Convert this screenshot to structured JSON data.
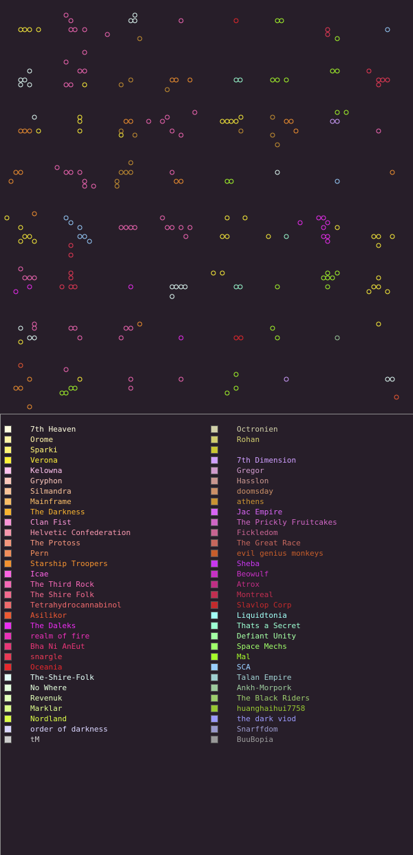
{
  "legend_left": [
    {
      "name": "7th Heaven",
      "color": "#fffde0"
    },
    {
      "name": "Orome",
      "color": "#fff5a8"
    },
    {
      "name": "Sparki",
      "color": "#fff576"
    },
    {
      "name": "Verona",
      "color": "#fff23a"
    },
    {
      "name": "Kelowna",
      "color": "#ffc2ee"
    },
    {
      "name": "Gryphon",
      "color": "#fcc8bc"
    },
    {
      "name": "Silmandra",
      "color": "#f9c39a"
    },
    {
      "name": "Mainframe",
      "color": "#f9bd67"
    },
    {
      "name": "The Darkness",
      "color": "#f8b431"
    },
    {
      "name": "Clan Fist",
      "color": "#fa96d8"
    },
    {
      "name": "Helvetic Confederation",
      "color": "#f797ae"
    },
    {
      "name": "The Protoss",
      "color": "#f5977e"
    },
    {
      "name": "Pern",
      "color": "#f28e5c"
    },
    {
      "name": "Starship Troopers",
      "color": "#f39230"
    },
    {
      "name": "Icae",
      "color": "#fb64e3"
    },
    {
      "name": "The Third Rock",
      "color": "#f568b6"
    },
    {
      "name": "The Shire Folk",
      "color": "#f36a8e"
    },
    {
      "name": "Tetrahydrocannabinol",
      "color": "#ef6a6c"
    },
    {
      "name": "Asilikor",
      "color": "#ee5a33"
    },
    {
      "name": "The Daleks",
      "color": "#ec2ef1"
    },
    {
      "name": "realm of fire",
      "color": "#ea31b8"
    },
    {
      "name": "Bha Ni AnEut",
      "color": "#e93677"
    },
    {
      "name": "snargle",
      "color": "#ea3a56"
    },
    {
      "name": "Oceania",
      "color": "#e7282d"
    },
    {
      "name": "The-Shire-Folk",
      "color": "#e3fff8"
    },
    {
      "name": "No Where",
      "color": "#e4ffdd"
    },
    {
      "name": "Revenuk",
      "color": "#e2ffba"
    },
    {
      "name": "Marklar",
      "color": "#dbfb8a"
    },
    {
      "name": "Nordland",
      "color": "#dbfc48"
    },
    {
      "name": "order of darkness",
      "color": "#dad6ff"
    },
    {
      "name": "tM",
      "color": "#cdcdcd"
    }
  ],
  "legend_right": [
    {
      "name": "Octronien",
      "color": "#d0cfa8"
    },
    {
      "name": "Rohan",
      "color": "#d0cc6e"
    },
    {
      "name": "",
      "color": "#c9c631"
    },
    {
      "name": "7th Dimension",
      "color": "#cf9fff"
    },
    {
      "name": "Gregor",
      "color": "#cf9acb"
    },
    {
      "name": "Hasslon",
      "color": "#c8968f"
    },
    {
      "name": "doomsday",
      "color": "#cb9067"
    },
    {
      "name": "athens",
      "color": "#c99332"
    },
    {
      "name": "Jac Empire",
      "color": "#d865f5"
    },
    {
      "name": "The Prickly Fruitcakes",
      "color": "#cf66c4"
    },
    {
      "name": "Fickledom",
      "color": "#c76491"
    },
    {
      "name": "The Great Race",
      "color": "#c5675d"
    },
    {
      "name": "evil genius monkeys",
      "color": "#c65e2b"
    },
    {
      "name": "Sheba",
      "color": "#c937f0"
    },
    {
      "name": "Beowulf",
      "color": "#c731c4"
    },
    {
      "name": "Atrox",
      "color": "#c12e84"
    },
    {
      "name": "Montreal",
      "color": "#c22e50"
    },
    {
      "name": "Slavlop Corp",
      "color": "#c22a2c"
    },
    {
      "name": "Liquidtonia",
      "color": "#a2fff6"
    },
    {
      "name": "Thats a Secret",
      "color": "#9cffd2"
    },
    {
      "name": "Defiant Unity",
      "color": "#a4ffa4"
    },
    {
      "name": "Space Mechs",
      "color": "#9fff6a"
    },
    {
      "name": "Mal",
      "color": "#a6fc2a"
    },
    {
      "name": "SCA",
      "color": "#99cfff"
    },
    {
      "name": "Talan Empire",
      "color": "#9fcfd0"
    },
    {
      "name": "Ankh-Morpork",
      "color": "#9cc99c"
    },
    {
      "name": "The Black Riders",
      "color": "#9ccc6c"
    },
    {
      "name": "huanghaihui7758",
      "color": "#97c732"
    },
    {
      "name": "the dark viod",
      "color": "#9a9afb"
    },
    {
      "name": "Snarffdom",
      "color": "#9999cb"
    },
    {
      "name": "BuuBopia",
      "color": "#999999"
    }
  ]
}
